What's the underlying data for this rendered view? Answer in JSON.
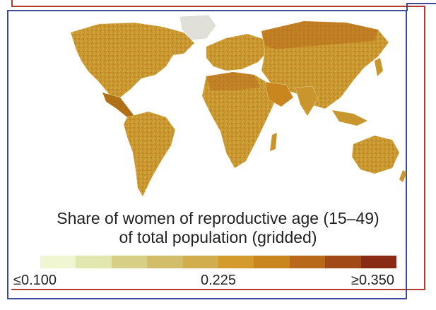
{
  "title": {
    "line1": "Share of women of reproductive age (15–49)",
    "line2": "of total population (gridded)"
  },
  "legend": {
    "colors": [
      "#f0f5d2",
      "#e1e7ae",
      "#d7cf86",
      "#d2bd6a",
      "#d2ad4e",
      "#d39a2c",
      "#c9861f",
      "#b8691a",
      "#a24a17",
      "#8a2c15"
    ],
    "label_min": "≤0.100",
    "label_mid": "0.225",
    "label_max": "≥0.350"
  },
  "colors": {
    "map_fill": "#c8962c",
    "map_dark": "#b07018",
    "map_light": "#d9b455",
    "frame_red": "#b33b2e",
    "frame_blue": "#3c4a9a"
  }
}
